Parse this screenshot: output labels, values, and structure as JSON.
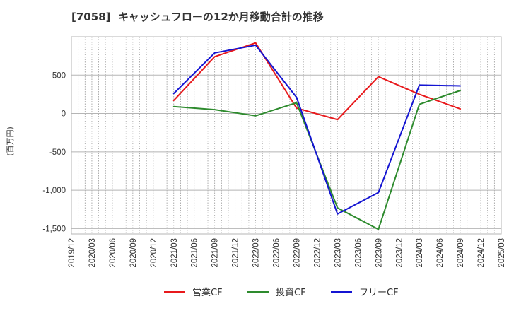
{
  "chart_data": {
    "type": "line",
    "title": "[7058]  キャッシュフローの12か月移動合計の推移",
    "xlabel": "",
    "ylabel": "(百万円)",
    "ylim": [
      -1570,
      1000
    ],
    "y_ticks": [
      500,
      0,
      -500,
      -1000,
      -1500
    ],
    "y_tick_labels": [
      "500",
      "0",
      "-500",
      "-1,000",
      "-1,500"
    ],
    "x_ticks": [
      "2019/12",
      "2020/03",
      "2020/06",
      "2020/09",
      "2020/12",
      "2021/03",
      "2021/06",
      "2021/09",
      "2021/12",
      "2022/03",
      "2022/06",
      "2022/09",
      "2022/12",
      "2023/03",
      "2023/06",
      "2023/09",
      "2023/12",
      "2024/03",
      "2024/06",
      "2024/09",
      "2024/12",
      "2025/03"
    ],
    "x": [
      "2021/03",
      "2021/09",
      "2022/03",
      "2022/09",
      "2023/03",
      "2023/09",
      "2024/03",
      "2024/09"
    ],
    "series": [
      {
        "name": "営業CF",
        "color": "#e8191c",
        "values": [
          170,
          740,
          920,
          70,
          -80,
          480,
          250,
          60
        ]
      },
      {
        "name": "投資CF",
        "color": "#2e8b2e",
        "values": [
          90,
          50,
          -30,
          140,
          -1230,
          -1510,
          120,
          300
        ]
      },
      {
        "name": "フリーCF",
        "color": "#1414d2",
        "values": [
          260,
          790,
          890,
          210,
          -1310,
          -1030,
          370,
          360
        ]
      }
    ],
    "legend": "bottom-center",
    "grid": true
  }
}
